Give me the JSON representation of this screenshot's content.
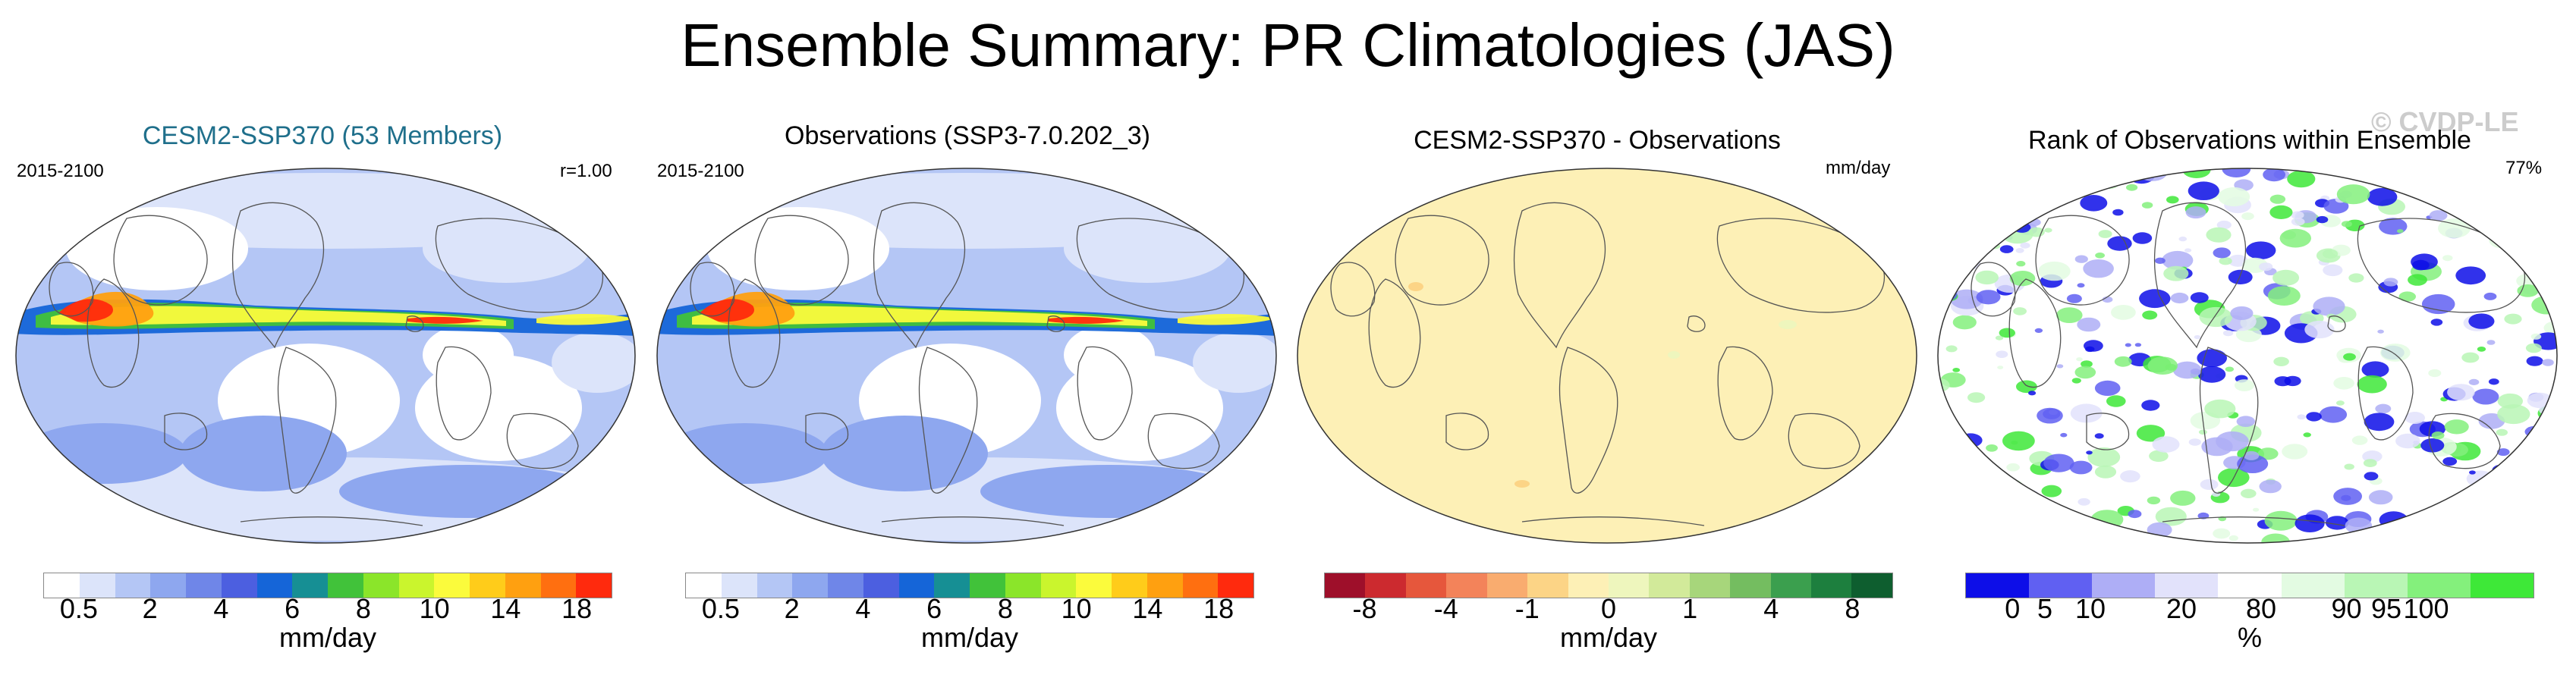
{
  "title": "Ensemble Summary: PR Climatologies (JAS)",
  "watermark": "© CVDP-LE",
  "panels": [
    {
      "title": "CESM2-SSP370 (53 Members)",
      "title_color": "#1f6f8b",
      "left_label": "2015-2100",
      "right_label": "r=1.00",
      "map_type": "precip",
      "colorbar": {
        "colors": [
          "#ffffff",
          "#dce4fa",
          "#b4c6f5",
          "#8ea7ef",
          "#6f86e8",
          "#4c5fe0",
          "#1565d8",
          "#168f94",
          "#41c23a",
          "#8be52a",
          "#caf52d",
          "#fbfb3c",
          "#ffcc1a",
          "#ffa010",
          "#ff6f10",
          "#ff2a0d"
        ],
        "ticks": [
          "0.5",
          "2",
          "4",
          "6",
          "8",
          "10",
          "14",
          "18"
        ],
        "unit": "mm/day"
      }
    },
    {
      "title": "Observations (SSP3-7.0.202_3)",
      "title_color": "#000000",
      "left_label": "2015-2100",
      "right_label": "",
      "map_type": "precip",
      "colorbar": {
        "colors": [
          "#ffffff",
          "#dce4fa",
          "#b4c6f5",
          "#8ea7ef",
          "#6f86e8",
          "#4c5fe0",
          "#1565d8",
          "#168f94",
          "#41c23a",
          "#8be52a",
          "#caf52d",
          "#fbfb3c",
          "#ffcc1a",
          "#ffa010",
          "#ff6f10",
          "#ff2a0d"
        ],
        "ticks": [
          "0.5",
          "2",
          "4",
          "6",
          "8",
          "10",
          "14",
          "18"
        ],
        "unit": "mm/day"
      }
    },
    {
      "title": "CESM2-SSP370 - Observations",
      "title_color": "#000000",
      "left_label": "",
      "right_label": "mm/day",
      "map_type": "diff",
      "colorbar": {
        "colors": [
          "#9e0f2a",
          "#cc2a2f",
          "#e6573c",
          "#f3835a",
          "#f9ac6f",
          "#fcd486",
          "#fdf0b6",
          "#eef6bd",
          "#d2ea9a",
          "#a7d67b",
          "#74bd60",
          "#3b9f4e",
          "#1d7f3e",
          "#0e5e2f"
        ],
        "ticks": [
          "-8",
          "-4",
          "-1",
          "0",
          "1",
          "4",
          "8"
        ],
        "unit": "mm/day"
      }
    },
    {
      "title": "Rank of Observations within Ensemble",
      "title_color": "#000000",
      "left_label": "",
      "right_label": "77%",
      "map_type": "rank",
      "colorbar": {
        "colors": [
          "#0d0ee8",
          "#6060f2",
          "#aeaef6",
          "#e2e2fb",
          "#ffffff",
          "#e3fbe2",
          "#b9f6b5",
          "#84f07c",
          "#3ee838"
        ],
        "ticks": [
          "0",
          "5",
          "10",
          "20",
          "80",
          "90",
          "95",
          "100"
        ],
        "unit": "%"
      }
    }
  ]
}
